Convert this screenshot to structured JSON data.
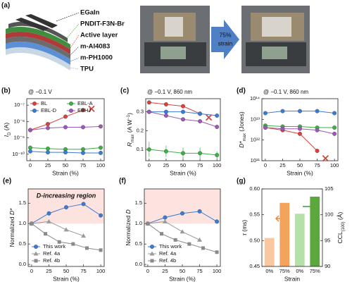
{
  "panel_a": {
    "label": "(a)",
    "layers": [
      {
        "text": "EGaIn",
        "color": "#111111"
      },
      {
        "text": "PNDIT-F3N-Br",
        "color": "#3a9a2a"
      },
      {
        "text": "Active layer",
        "color": "#c0392b"
      },
      {
        "text": "m-Al4083",
        "color": "#444444"
      },
      {
        "text": "m-PH1000",
        "color": "#2e6fd0"
      },
      {
        "text": "TPU",
        "color": "#aaaaaa"
      }
    ],
    "arrow": [
      "75%",
      "strain"
    ]
  },
  "chart_data": [
    {
      "panel": "(b)",
      "type": "line",
      "annotation": "@ −0.1 V",
      "log": true,
      "legend": "upper left",
      "xlabel": "Strain (%)",
      "ylabel": [
        {
          "text": "I",
          "italic": true
        },
        {
          "text": "D",
          "sub": true
        },
        {
          "text": " (A)"
        }
      ],
      "xlim": [
        -5,
        105
      ],
      "xticks": [
        0,
        25,
        50,
        75,
        100
      ],
      "ylim": [
        4e-11,
        2.5e-07
      ],
      "yticks": [
        {
          "value": 1e-10,
          "label": "10⁻¹⁰"
        },
        {
          "value": 1e-09,
          "label": "10⁻⁹"
        },
        {
          "value": 1e-08,
          "label": "10⁻⁸"
        },
        {
          "value": 1e-07,
          "label": "10⁻⁷"
        }
      ],
      "series": [
        {
          "name": "BL",
          "color": "#d9423a",
          "marker": "circle",
          "x": [
            0,
            25,
            50,
            75
          ],
          "values": [
            3e-09,
            7e-09,
            2e-08,
            5e-08
          ]
        },
        {
          "name": "EBL-A",
          "color": "#3cb043",
          "marker": "circle",
          "x": [
            0,
            25,
            50,
            75,
            100
          ],
          "values": [
            2.5e-10,
            2.2e-10,
            2e-10,
            2e-10,
            2.5e-10
          ]
        },
        {
          "name": "EBL-D",
          "color": "#3a7bd5",
          "marker": "circle",
          "x": [
            0,
            25,
            50,
            75,
            100
          ],
          "values": [
            1.5e-10,
            1.3e-10,
            1.3e-10,
            1.2e-10,
            1.2e-10
          ]
        },
        {
          "name": "EBHJ",
          "color": "#9b59b6",
          "marker": "circle",
          "x": [
            0,
            25,
            50,
            75,
            100
          ],
          "values": [
            3e-09,
            4e-09,
            4.5e-09,
            4.5e-09,
            5e-09
          ]
        }
      ],
      "failure": {
        "x": 87,
        "y": 6e-08,
        "color": "#d9423a"
      }
    },
    {
      "panel": "(c)",
      "type": "line",
      "annotation": "@ −0.1 V, 860 nm",
      "log": false,
      "xlabel": "Strain (%)",
      "ylabel": [
        {
          "text": "R",
          "italic": true
        },
        {
          "text": "max",
          "sub": true
        },
        {
          "text": " (A W"
        },
        {
          "text": "−1",
          "sup": true
        },
        {
          "text": ")"
        }
      ],
      "xlim": [
        -5,
        105
      ],
      "xticks": [
        0,
        25,
        50,
        75,
        100
      ],
      "ylim": [
        0.04,
        0.37
      ],
      "yticks": [
        0.1,
        0.2,
        0.3
      ],
      "series": [
        {
          "name": "BL",
          "color": "#d9423a",
          "marker": "circle",
          "x": [
            0,
            25,
            50,
            75
          ],
          "values": [
            0.35,
            0.34,
            0.33,
            0.29
          ]
        },
        {
          "name": "EBL-A",
          "color": "#3cb043",
          "marker": "circle",
          "x": [
            0,
            25,
            50,
            75,
            100
          ],
          "values": [
            0.1,
            0.09,
            0.08,
            0.08,
            0.07
          ],
          "errors": [
            0.04,
            0.03,
            0.03,
            0.03,
            0.02
          ]
        },
        {
          "name": "EBL-D",
          "color": "#3a7bd5",
          "marker": "circle",
          "x": [
            0,
            25,
            50,
            75,
            100
          ],
          "values": [
            0.3,
            0.3,
            0.3,
            0.29,
            0.28
          ]
        },
        {
          "name": "EBHJ",
          "color": "#9b59b6",
          "marker": "circle",
          "x": [
            0,
            25,
            50,
            75,
            100
          ],
          "values": [
            0.3,
            0.28,
            0.26,
            0.25,
            0.22
          ]
        }
      ],
      "failure": {
        "x": 88,
        "y": 0.27,
        "color": "#d9423a"
      }
    },
    {
      "panel": "(d)",
      "type": "line",
      "annotation": "@ −0.1 V, 860 nm",
      "log": true,
      "xlabel": "Strain (%)",
      "ylabel": [
        {
          "text": "D*",
          "italic": true
        },
        {
          "text": "max",
          "sub": true
        },
        {
          "text": " (Jones)"
        }
      ],
      "xlim": [
        -5,
        105
      ],
      "xticks": [
        0,
        25,
        50,
        75,
        100
      ],
      "ylim": [
        100000000000.0,
        100000000000000.0
      ],
      "yticks": [
        {
          "value": 100000000000.0,
          "label": "10¹¹"
        },
        {
          "value": 1000000000000.0,
          "label": "10¹²"
        },
        {
          "value": 10000000000000.0,
          "label": "10¹³"
        },
        {
          "value": 100000000000000.0,
          "label": "10¹⁴"
        }
      ],
      "series": [
        {
          "name": "BL",
          "color": "#d9423a",
          "marker": "circle",
          "x": [
            0,
            25,
            50,
            75
          ],
          "values": [
            4000000000000.0,
            3000000000000.0,
            2000000000000.0,
            300000000000.0
          ]
        },
        {
          "name": "EBL-A",
          "color": "#3cb043",
          "marker": "circle",
          "x": [
            0,
            25,
            50,
            75,
            100
          ],
          "values": [
            5000000000000.0,
            4500000000000.0,
            4500000000000.0,
            4000000000000.0,
            4000000000000.0
          ]
        },
        {
          "name": "EBL-D",
          "color": "#3a7bd5",
          "marker": "circle",
          "x": [
            0,
            25,
            50,
            75,
            100
          ],
          "values": [
            20000000000000.0,
            25000000000000.0,
            25000000000000.0,
            25000000000000.0,
            20000000000000.0
          ]
        },
        {
          "name": "EBHJ",
          "color": "#9b59b6",
          "marker": "circle",
          "x": [
            0,
            25,
            50,
            75,
            100
          ],
          "values": [
            4000000000000.0,
            3500000000000.0,
            3500000000000.0,
            3000000000000.0,
            2000000000000.0
          ]
        }
      ],
      "failure": {
        "x": 87,
        "y": 130000000000.0,
        "color": "#d9423a"
      }
    },
    {
      "panel": "(e)",
      "type": "line",
      "log": false,
      "legend": "lower left",
      "xlabel": "Strain (%)",
      "ylabel": [
        {
          "text": "Normalized "
        },
        {
          "text": "D*",
          "italic": true
        }
      ],
      "xlim": [
        -5,
        105
      ],
      "xticks": [
        0,
        25,
        50,
        75,
        100
      ],
      "ylim": [
        -0.05,
        1.85
      ],
      "yticks": [
        {
          "value": 0,
          "label": "0.0"
        },
        0.5,
        {
          "value": 1,
          "label": "1.0"
        },
        1.5
      ],
      "shaded_above": 1,
      "region_label": "D-increasing region",
      "series": [
        {
          "name": "This work",
          "color": "#3a7bd5",
          "marker": "circle",
          "x": [
            0,
            25,
            50,
            75,
            100
          ],
          "values": [
            1,
            1.25,
            1.4,
            1.48,
            1.2
          ]
        },
        {
          "name": "Ref. 4a",
          "color": "#9a9a9a",
          "marker": "triangle",
          "x": [
            0,
            25,
            50,
            75
          ],
          "values": [
            1,
            1.05,
            0.85,
            0.7
          ]
        },
        {
          "name": "Ref. 4b",
          "color": "#8a8a8a",
          "marker": "square",
          "x": [
            0,
            20,
            40,
            60,
            80,
            100
          ],
          "values": [
            1,
            0.75,
            0.55,
            0.5,
            0.4,
            0.35
          ]
        }
      ]
    },
    {
      "panel": "(f)",
      "type": "line",
      "log": false,
      "legend": "lower left",
      "xlabel": "Strain (%)",
      "ylabel": [
        {
          "text": "Normalized "
        },
        {
          "text": "D",
          "italic": true
        }
      ],
      "xlim": [
        -5,
        105
      ],
      "xticks": [
        0,
        25,
        50,
        75,
        100
      ],
      "ylim": [
        -0.05,
        1.85
      ],
      "yticks": [
        {
          "value": 0,
          "label": "0.0"
        },
        0.5,
        {
          "value": 1,
          "label": "1.0"
        },
        1.5
      ],
      "shaded_above": 1,
      "series": [
        {
          "name": "This work",
          "color": "#3a7bd5",
          "marker": "circle",
          "x": [
            0,
            25,
            50,
            75,
            100
          ],
          "values": [
            1,
            1.15,
            1.25,
            1.3,
            1.05
          ]
        },
        {
          "name": "Ref. 4a",
          "color": "#9a9a9a",
          "marker": "triangle",
          "x": [
            0,
            25,
            50,
            75
          ],
          "values": [
            1,
            1.05,
            0.8,
            0.6
          ]
        },
        {
          "name": "Ref. 4b",
          "color": "#8a8a8a",
          "marker": "square",
          "x": [
            0,
            20,
            40,
            60,
            80,
            100
          ],
          "values": [
            1,
            0.75,
            0.6,
            0.5,
            0.4,
            0.3
          ]
        }
      ]
    },
    {
      "panel": "(g)",
      "type": "bar",
      "xlabel": "Strain",
      "categories": [
        "0%",
        "75%",
        "0%",
        "75%"
      ],
      "ylabel": [
        {
          "text": "τ",
          "italic": true
        },
        {
          "text": " (ms)"
        }
      ],
      "ycolor": "#e8883a",
      "y2label": [
        {
          "text": "CCL"
        },
        {
          "text": "(100)",
          "sub": true
        },
        {
          "text": " (Å)"
        }
      ],
      "y2color": "#3f9a35",
      "ylim": [
        0.45,
        0.6
      ],
      "yticks": [
        0.45,
        {
          "value": 0.5,
          "label": "0.50"
        },
        0.55,
        {
          "value": 0.6,
          "label": "0.60"
        }
      ],
      "y2lim": [
        90,
        105
      ],
      "y2ticks": [
        90,
        95,
        100,
        105
      ],
      "bar_colors": [
        "#f9c8a0",
        "#f5a35c",
        "#b5e0a8",
        "#5aa83c"
      ],
      "series": [
        {
          "axis": "y",
          "values": [
            0.505,
            0.573,
            null,
            null
          ]
        },
        {
          "axis": "y2",
          "values": [
            null,
            null,
            100.2,
            103.5
          ]
        }
      ]
    }
  ]
}
